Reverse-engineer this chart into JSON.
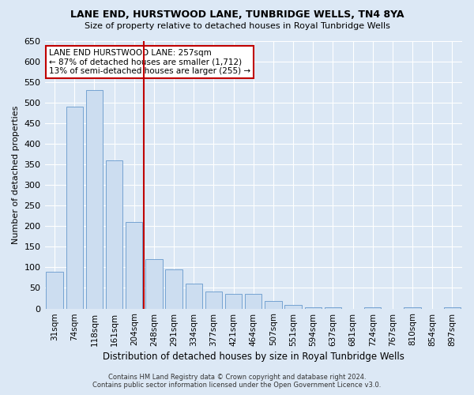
{
  "title": "LANE END, HURSTWOOD LANE, TUNBRIDGE WELLS, TN4 8YA",
  "subtitle": "Size of property relative to detached houses in Royal Tunbridge Wells",
  "xlabel": "Distribution of detached houses by size in Royal Tunbridge Wells",
  "ylabel": "Number of detached properties",
  "footer1": "Contains HM Land Registry data © Crown copyright and database right 2024.",
  "footer2": "Contains public sector information licensed under the Open Government Licence v3.0.",
  "annotation_title": "LANE END HURSTWOOD LANE: 257sqm",
  "annotation_line1": "← 87% of detached houses are smaller (1,712)",
  "annotation_line2": "13% of semi-detached houses are larger (255) →",
  "categories": [
    "31sqm",
    "74sqm",
    "118sqm",
    "161sqm",
    "204sqm",
    "248sqm",
    "291sqm",
    "334sqm",
    "377sqm",
    "421sqm",
    "464sqm",
    "507sqm",
    "551sqm",
    "594sqm",
    "637sqm",
    "681sqm",
    "724sqm",
    "767sqm",
    "810sqm",
    "854sqm",
    "897sqm"
  ],
  "values": [
    90,
    490,
    530,
    360,
    210,
    120,
    95,
    60,
    42,
    35,
    35,
    18,
    8,
    3,
    3,
    0,
    3,
    0,
    3,
    0,
    3
  ],
  "bar_color": "#ccddf0",
  "bar_edge_color": "#6699cc",
  "vline_color": "#c00000",
  "vline_x_index": 5,
  "ylim": [
    0,
    650
  ],
  "yticks": [
    0,
    50,
    100,
    150,
    200,
    250,
    300,
    350,
    400,
    450,
    500,
    550,
    600,
    650
  ],
  "bg_color": "#dce8f5",
  "plot_bg_color": "#dce8f5",
  "grid_color": "#ffffff",
  "figwidth": 6.0,
  "figheight": 5.0
}
